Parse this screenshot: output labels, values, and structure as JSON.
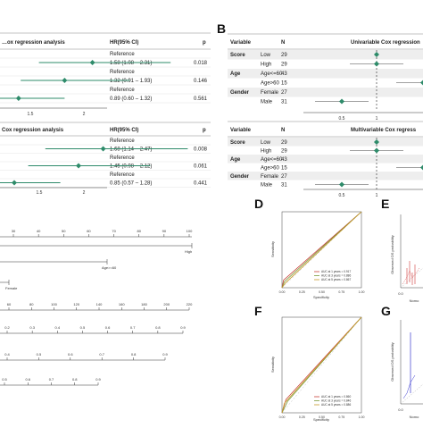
{
  "panel_letters": [
    "B",
    "D",
    "E",
    "F",
    "G"
  ],
  "panel_a": {
    "uni": {
      "title": "…ox regression analysis",
      "hr_header": "HR(95% CI)",
      "p_header": "p",
      "rows": [
        {
          "hr": "Reference",
          "p": ""
        },
        {
          "hr": "1.58 (1.08 – 2.31)",
          "p": "0.018"
        },
        {
          "hr": "Reference",
          "p": ""
        },
        {
          "hr": "1.32 (0.91 – 1.93)",
          "p": "0.146"
        },
        {
          "hr": "Reference",
          "p": ""
        },
        {
          "hr": "0.89 (0.60 – 1.32)",
          "p": "0.561"
        }
      ],
      "ticks": [
        "1.5",
        "2"
      ]
    },
    "multi": {
      "title": "Cox regression analysis",
      "hr_header": "HR(95% CI)",
      "p_header": "p",
      "rows": [
        {
          "hr": "Reference",
          "p": ""
        },
        {
          "hr": "1.68 (1.14 – 2.47)",
          "p": "0.008"
        },
        {
          "hr": "Reference",
          "p": ""
        },
        {
          "hr": "1.45 (0.98 – 2.12)",
          "p": "0.061"
        },
        {
          "hr": "Reference",
          "p": ""
        },
        {
          "hr": "0.85 (0.57 – 1.28)",
          "p": "0.441"
        }
      ],
      "ticks": [
        "1.5",
        "2"
      ]
    }
  },
  "panel_b": {
    "uni": {
      "variable_header": "Variable",
      "n_header": "N",
      "title": "Univariable Cox regression",
      "rows": [
        {
          "var": "Score",
          "level": "Low",
          "n": "29"
        },
        {
          "var": "",
          "level": "High",
          "n": "29"
        },
        {
          "var": "Age",
          "level": "Age<=60",
          "n": "43"
        },
        {
          "var": "",
          "level": "Age>60",
          "n": "15"
        },
        {
          "var": "Gender",
          "level": "Female",
          "n": "27"
        },
        {
          "var": "",
          "level": "Male",
          "n": "31"
        }
      ],
      "ticks": [
        "0.5",
        "1"
      ]
    },
    "multi": {
      "variable_header": "Variable",
      "n_header": "N",
      "title": "Multivariable Cox regress",
      "rows": [
        {
          "var": "Score",
          "level": "Low",
          "n": "29"
        },
        {
          "var": "",
          "level": "High",
          "n": "29"
        },
        {
          "var": "Age",
          "level": "Age<=60",
          "n": "43"
        },
        {
          "var": "",
          "level": "Age>60",
          "n": "15"
        },
        {
          "var": "Gender",
          "level": "Female",
          "n": "27"
        },
        {
          "var": "",
          "level": "Male",
          "n": "31"
        }
      ],
      "ticks": [
        "0.5",
        "1"
      ]
    }
  },
  "nomogram": {
    "points_ticks": [
      "30",
      "40",
      "50",
      "60",
      "70",
      "80",
      "90",
      "100"
    ],
    "risk_label": "High",
    "age_label": "Age>=60",
    "gender_label": "Female",
    "total_points_ticks": [
      "60",
      "80",
      "100",
      "120",
      "140",
      "160",
      "180",
      "200",
      "220"
    ],
    "prob_row1": [
      "0.2",
      "0.3",
      "0.4",
      "0.5",
      "0.6",
      "0.7",
      "0.8",
      "0.9"
    ],
    "prob_row2": [
      "0.4",
      "0.5",
      "0.6",
      "0.7",
      "0.8",
      "0.9"
    ],
    "prob_row3": [
      "0.5",
      "0.6",
      "0.7",
      "0.8",
      "0.9"
    ]
  },
  "panel_d": {
    "ylabel": "Sensitivity",
    "xlabel": "Specificity",
    "x_ticks": [
      "0.00",
      "0.25",
      "0.50",
      "0.75",
      "1.00"
    ],
    "legend": [
      "AUC at 1 years = 0.917",
      "AUC at 3 years = 0.886",
      "AUC at 5 years = 0.867"
    ]
  },
  "panel_f": {
    "ylabel": "Sensitivity",
    "xlabel": "Specificity",
    "x_ticks": [
      "0.00",
      "0.25",
      "0.50",
      "0.75",
      "1.00"
    ],
    "legend": [
      "AUC at 1 years = 0.860",
      "AUC at 3 years = 0.846",
      "AUC at 5 years = 0.886"
    ]
  },
  "panel_e": {
    "ylabel": "Observed OS probability",
    "x_tick": "0.0",
    "xlabel": "Nomo"
  },
  "panel_g": {
    "ylabel": "Observed OS probability",
    "x_tick": "0.0",
    "xlabel": "Nomo"
  },
  "colors": {
    "forest": "#2e8b6a",
    "roc1": "#c8413a",
    "roc2": "#7a9a3a",
    "roc3": "#c59a2a",
    "calib_red": "#d03a3a",
    "calib_blue": "#3a3ad0"
  },
  "chart_data": [
    {
      "type": "forest",
      "panel": "A-univariable",
      "estimates": [
        1.58,
        1.32,
        0.89
      ],
      "lower": [
        1.08,
        0.91,
        0.6
      ],
      "upper": [
        2.31,
        1.93,
        1.32
      ],
      "p": [
        0.018,
        0.146,
        0.561
      ]
    },
    {
      "type": "forest",
      "panel": "A-multivariable",
      "estimates": [
        1.68,
        1.45,
        0.85
      ],
      "lower": [
        1.14,
        0.98,
        0.57
      ],
      "upper": [
        2.47,
        2.12,
        1.28
      ],
      "p": [
        0.008,
        0.061,
        0.441
      ]
    },
    {
      "type": "line",
      "panel": "D",
      "xlim": [
        0,
        1
      ],
      "ylim": [
        0,
        1
      ],
      "series": [
        {
          "name": "AUC at 1 years = 0.917",
          "x": [
            0,
            0.02,
            1
          ],
          "y": [
            0,
            0.1,
            1
          ]
        },
        {
          "name": "AUC at 3 years = 0.886",
          "x": [
            0,
            0.03,
            1
          ],
          "y": [
            0,
            0.08,
            1
          ]
        },
        {
          "name": "AUC at 5 years = 0.867",
          "x": [
            0,
            0.04,
            1
          ],
          "y": [
            0,
            0.06,
            1
          ]
        }
      ]
    },
    {
      "type": "line",
      "panel": "F",
      "xlim": [
        0,
        1
      ],
      "ylim": [
        0,
        1
      ],
      "series": [
        {
          "name": "AUC at 1 years = 0.860",
          "x": [
            0,
            0.05,
            1
          ],
          "y": [
            0,
            0.14,
            1
          ]
        },
        {
          "name": "AUC at 3 years = 0.846",
          "x": [
            0,
            0.07,
            1
          ],
          "y": [
            0,
            0.12,
            1
          ]
        },
        {
          "name": "AUC at 5 years = 0.886",
          "x": [
            0,
            0.03,
            1
          ],
          "y": [
            0,
            0.1,
            1
          ]
        }
      ]
    }
  ]
}
